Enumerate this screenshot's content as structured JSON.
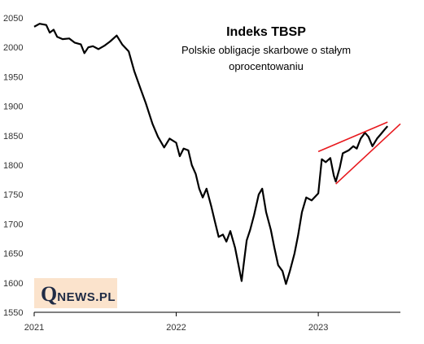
{
  "chart_data": {
    "type": "line",
    "title": "Indeks TBSP",
    "subtitle_lines": [
      "Polskie obligacje skarbowe o stałym",
      "oprocentowaniu"
    ],
    "xlabel": "",
    "ylabel": "",
    "ylim": [
      1550,
      2050
    ],
    "yticks": [
      1550,
      1600,
      1650,
      1700,
      1750,
      1800,
      1850,
      1900,
      1950,
      2000,
      2050
    ],
    "xlim": [
      "2021-01-01",
      "2023-07-31"
    ],
    "xticks": [
      {
        "date": "2021-01-01",
        "label": "2021"
      },
      {
        "date": "2022-01-01",
        "label": "2022"
      },
      {
        "date": "2023-01-01",
        "label": "2023"
      }
    ],
    "grid": false,
    "line_color": "#000000",
    "series": [
      {
        "points": [
          [
            "2021-01-01",
            2035
          ],
          [
            "2021-01-15",
            2040
          ],
          [
            "2021-02-01",
            2038
          ],
          [
            "2021-02-10",
            2025
          ],
          [
            "2021-02-20",
            2030
          ],
          [
            "2021-03-01",
            2018
          ],
          [
            "2021-03-15",
            2014
          ],
          [
            "2021-04-01",
            2015
          ],
          [
            "2021-04-15",
            2008
          ],
          [
            "2021-05-01",
            2005
          ],
          [
            "2021-05-10",
            1990
          ],
          [
            "2021-05-20",
            2000
          ],
          [
            "2021-06-01",
            2002
          ],
          [
            "2021-06-15",
            1997
          ],
          [
            "2021-07-01",
            2003
          ],
          [
            "2021-07-15",
            2010
          ],
          [
            "2021-08-01",
            2020
          ],
          [
            "2021-08-15",
            2005
          ],
          [
            "2021-09-01",
            1993
          ],
          [
            "2021-09-15",
            1960
          ],
          [
            "2021-10-01",
            1930
          ],
          [
            "2021-10-15",
            1905
          ],
          [
            "2021-11-01",
            1870
          ],
          [
            "2021-11-15",
            1848
          ],
          [
            "2021-12-01",
            1830
          ],
          [
            "2021-12-15",
            1845
          ],
          [
            "2022-01-01",
            1838
          ],
          [
            "2022-01-10",
            1815
          ],
          [
            "2022-01-20",
            1828
          ],
          [
            "2022-02-01",
            1825
          ],
          [
            "2022-02-10",
            1800
          ],
          [
            "2022-02-20",
            1785
          ],
          [
            "2022-03-01",
            1760
          ],
          [
            "2022-03-10",
            1745
          ],
          [
            "2022-03-20",
            1760
          ],
          [
            "2022-04-01",
            1730
          ],
          [
            "2022-04-10",
            1705
          ],
          [
            "2022-04-20",
            1678
          ],
          [
            "2022-05-01",
            1682
          ],
          [
            "2022-05-10",
            1670
          ],
          [
            "2022-05-20",
            1688
          ],
          [
            "2022-06-01",
            1660
          ],
          [
            "2022-06-10",
            1630
          ],
          [
            "2022-06-18",
            1603
          ],
          [
            "2022-06-25",
            1640
          ],
          [
            "2022-07-01",
            1672
          ],
          [
            "2022-07-10",
            1690
          ],
          [
            "2022-07-20",
            1715
          ],
          [
            "2022-08-01",
            1750
          ],
          [
            "2022-08-10",
            1760
          ],
          [
            "2022-08-20",
            1720
          ],
          [
            "2022-09-01",
            1690
          ],
          [
            "2022-09-10",
            1660
          ],
          [
            "2022-09-20",
            1630
          ],
          [
            "2022-10-01",
            1620
          ],
          [
            "2022-10-10",
            1598
          ],
          [
            "2022-10-20",
            1620
          ],
          [
            "2022-11-01",
            1650
          ],
          [
            "2022-11-10",
            1680
          ],
          [
            "2022-11-20",
            1720
          ],
          [
            "2022-12-01",
            1745
          ],
          [
            "2022-12-15",
            1740
          ],
          [
            "2023-01-01",
            1752
          ],
          [
            "2023-01-10",
            1810
          ],
          [
            "2023-01-20",
            1805
          ],
          [
            "2023-02-01",
            1812
          ],
          [
            "2023-02-10",
            1782
          ],
          [
            "2023-02-15",
            1772
          ],
          [
            "2023-02-25",
            1795
          ],
          [
            "2023-03-05",
            1820
          ],
          [
            "2023-03-20",
            1825
          ],
          [
            "2023-04-01",
            1832
          ],
          [
            "2023-04-10",
            1828
          ],
          [
            "2023-04-20",
            1845
          ],
          [
            "2023-05-01",
            1855
          ],
          [
            "2023-05-10",
            1848
          ],
          [
            "2023-05-20",
            1832
          ],
          [
            "2023-06-01",
            1845
          ],
          [
            "2023-06-10",
            1852
          ],
          [
            "2023-06-20",
            1860
          ],
          [
            "2023-06-28",
            1866
          ]
        ]
      }
    ],
    "annotations": [
      {
        "type": "trendline",
        "color": "#e8191e",
        "from": [
          "2023-01-01",
          1823
        ],
        "to": [
          "2023-06-28",
          1873
        ]
      },
      {
        "type": "trendline",
        "color": "#e8191e",
        "from": [
          "2023-02-15",
          1768
        ],
        "to": [
          "2023-07-31",
          1870
        ]
      }
    ]
  },
  "brand": {
    "initial": "Q",
    "rest": "NEWS.PL",
    "box_color": "#fbe3cc",
    "text_color": "#1f2b45"
  }
}
